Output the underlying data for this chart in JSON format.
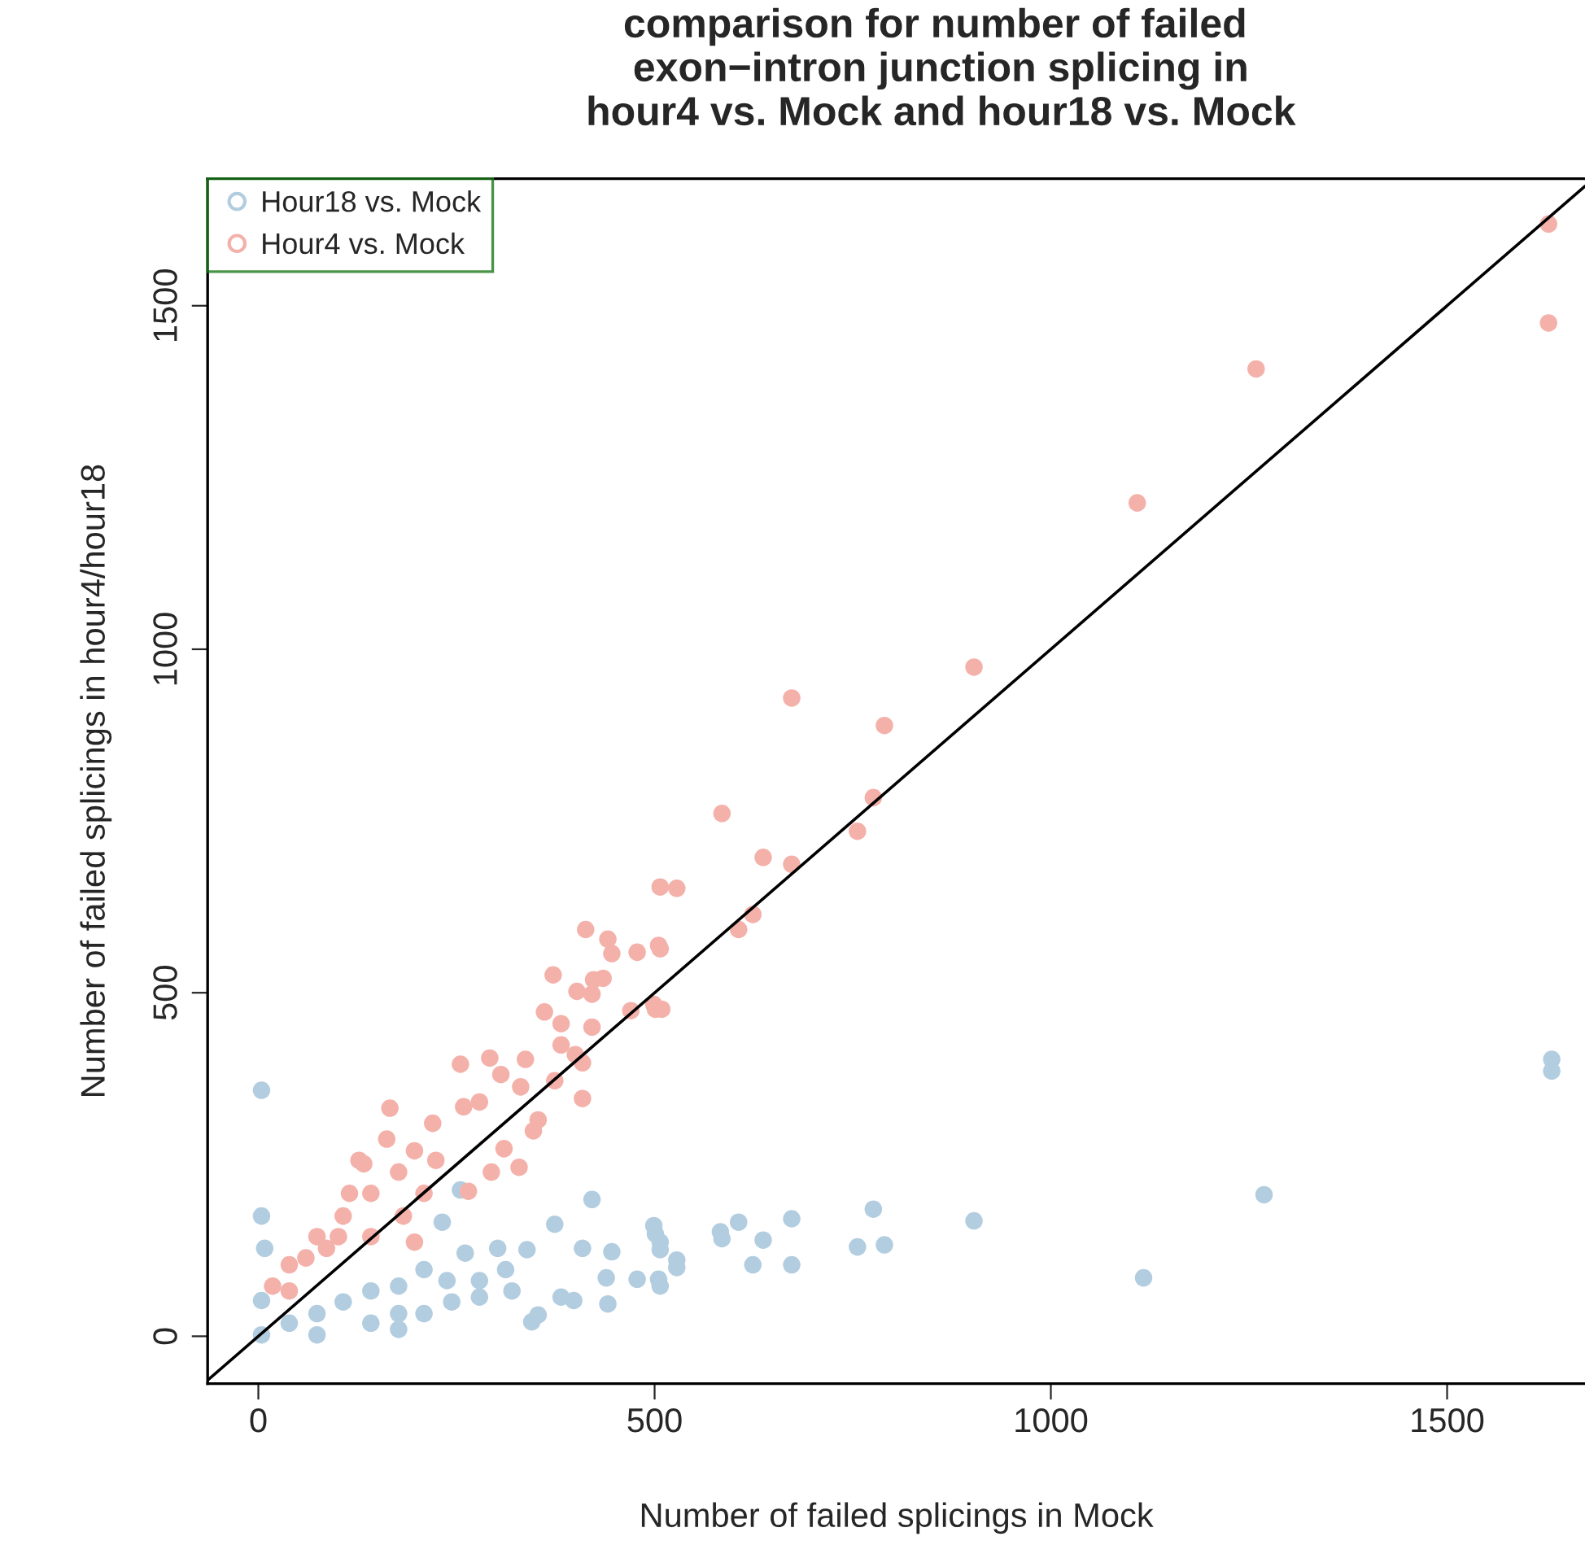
{
  "chart_data": {
    "type": "scatter",
    "title": "comparison for number of failed\n exon−intron junction splicing in\n hour4 vs. Mock and hour18 vs. Mock",
    "xlabel": "Number of failed splicings in Mock",
    "ylabel": "Number of failed splicings in hour4/hour18",
    "xlim": [
      -64,
      1674
    ],
    "ylim": [
      -69,
      1685
    ],
    "xticks": [
      0,
      500,
      1000,
      1500
    ],
    "yticks": [
      0,
      500,
      1000,
      1500
    ],
    "grid": false,
    "legend": "top left",
    "marker": "circle",
    "series": [
      {
        "name": "Hour18 vs. Mock",
        "color": "#b3cde0",
        "x": [
          1632,
          1632,
          1269,
          1117,
          903,
          776,
          673,
          790,
          756,
          585,
          606,
          637,
          624,
          673,
          528,
          507,
          507,
          501,
          4,
          4,
          8,
          421,
          374,
          499,
          583,
          507,
          446,
          528,
          409,
          339,
          302,
          261,
          255,
          232,
          478,
          439,
          505,
          382,
          398,
          441,
          353,
          345,
          320,
          279,
          238,
          209,
          177,
          142,
          107,
          74,
          39,
          4,
          4,
          177,
          74,
          142,
          209,
          244,
          279,
          312,
          177
        ],
        "values": [
          403,
          386,
          206,
          85,
          168,
          185,
          171,
          133,
          130,
          142,
          166,
          140,
          104,
          104,
          100,
          73,
          126,
          149,
          358,
          175,
          128,
          199,
          163,
          161,
          152,
          137,
          123,
          111,
          128,
          126,
          128,
          121,
          213,
          166,
          83,
          85,
          83,
          57,
          52,
          47,
          31,
          21,
          66,
          57,
          81,
          97,
          73,
          66,
          50,
          33,
          19,
          2,
          52,
          10,
          2,
          19,
          33,
          50,
          81,
          97,
          33
        ]
      },
      {
        "name": "Hour4 vs. Mock",
        "color": "#f4b1aa",
        "x": [
          1628,
          1628,
          1259,
          1109,
          903,
          673,
          790,
          585,
          776,
          756,
          637,
          673,
          507,
          528,
          624,
          606,
          507,
          501,
          509,
          413,
          441,
          446,
          478,
          505,
          372,
          402,
          423,
          435,
          421,
          361,
          382,
          421,
          470,
          499,
          382,
          400,
          409,
          255,
          292,
          306,
          337,
          374,
          409,
          166,
          279,
          331,
          259,
          220,
          353,
          347,
          310,
          329,
          294,
          133,
          265,
          197,
          39,
          224,
          74,
          107,
          142,
          177,
          197,
          162,
          115,
          60,
          18,
          86,
          142,
          183,
          209,
          127,
          101,
          39
        ],
        "values": [
          1619,
          1475,
          1408,
          1213,
          974,
          929,
          889,
          761,
          784,
          735,
          697,
          687,
          654,
          652,
          614,
          592,
          564,
          476,
          476,
          592,
          578,
          557,
          559,
          569,
          526,
          502,
          519,
          521,
          498,
          472,
          455,
          450,
          474,
          483,
          424,
          410,
          398,
          396,
          405,
          381,
          403,
          372,
          346,
          332,
          341,
          363,
          334,
          310,
          315,
          299,
          273,
          246,
          239,
          251,
          211,
          137,
          104,
          256,
          145,
          175,
          208,
          239,
          270,
          287,
          208,
          114,
          73,
          128,
          145,
          175,
          208,
          256,
          145,
          66
        ]
      },
      {
        "type": "line",
        "marker": "none",
        "color": "#000000",
        "x": [
          -64,
          1674
        ],
        "values": [
          -64,
          1674
        ]
      }
    ]
  }
}
